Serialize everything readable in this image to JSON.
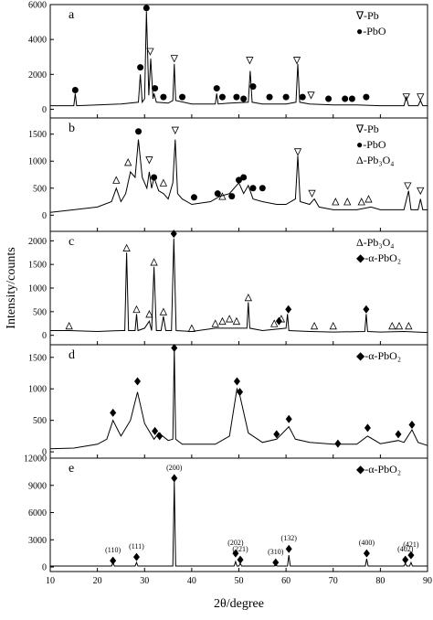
{
  "chart_data": [
    {
      "type": "line",
      "label": "a",
      "xlim": [
        10,
        90
      ],
      "xticks": [
        10,
        20,
        30,
        40,
        50,
        60,
        70,
        80,
        90
      ],
      "ylim": [
        -500,
        6000
      ],
      "yticks": [
        0,
        2000,
        4000,
        6000
      ],
      "x": [
        10,
        15,
        15.3,
        15.6,
        20,
        25,
        28.7,
        29.1,
        29.5,
        30,
        30.4,
        30.9,
        31.3,
        31.8,
        32,
        32.5,
        35,
        36,
        36.3,
        36.6,
        40,
        45,
        45.3,
        45.6,
        48,
        52,
        52.4,
        52.8,
        55,
        60,
        62.1,
        62.5,
        62.9,
        65,
        70,
        75,
        80,
        85,
        85.5,
        86,
        88,
        88.5,
        89,
        90
      ],
      "values": [
        200,
        200,
        900,
        200,
        250,
        300,
        400,
        2000,
        400,
        600,
        5600,
        800,
        2900,
        600,
        900,
        400,
        350,
        500,
        2600,
        500,
        300,
        300,
        900,
        300,
        350,
        400,
        2200,
        400,
        300,
        300,
        400,
        2600,
        400,
        300,
        250,
        250,
        200,
        200,
        700,
        200,
        200,
        500,
        200,
        200
      ],
      "markers": [
        {
          "symbol": "triangle-down",
          "x": [
            31.2,
            36.3,
            52.3,
            62.3,
            65.3,
            85.5,
            88.5
          ],
          "y": [
            3300,
            2900,
            2800,
            2800,
            800,
            700,
            700
          ]
        },
        {
          "symbol": "circle",
          "x": [
            15.3,
            29.1,
            30.4,
            32.2,
            34,
            38,
            45.3,
            46.5,
            49.5,
            51,
            53,
            56.5,
            60,
            63.5,
            69,
            72.5,
            74,
            77
          ],
          "y": [
            1100,
            2400,
            5800,
            1200,
            700,
            700,
            1200,
            700,
            700,
            600,
            1300,
            700,
            700,
            700,
            600,
            600,
            600,
            700
          ]
        }
      ],
      "legend": [
        "∇-Pb",
        "●-PbO"
      ]
    },
    {
      "type": "line",
      "label": "b",
      "xlim": [
        10,
        90
      ],
      "xticks": [
        10,
        20,
        30,
        40,
        50,
        60,
        70,
        80,
        90
      ],
      "ylim": [
        -300,
        1800
      ],
      "yticks": [
        0,
        500,
        1000,
        1500
      ],
      "x": [
        10,
        15,
        20,
        23,
        24,
        25,
        26,
        27,
        28,
        28.7,
        29.5,
        30.5,
        31,
        31.5,
        32,
        33,
        34,
        35,
        36,
        36.5,
        37,
        38,
        40,
        44,
        46,
        48,
        49,
        50,
        51,
        52,
        53,
        55,
        58,
        60,
        62,
        62.5,
        63,
        65,
        66,
        67,
        70,
        75,
        78,
        80,
        85,
        86,
        86.5,
        88,
        88.5,
        89,
        90
      ],
      "values": [
        50,
        100,
        150,
        250,
        500,
        250,
        400,
        800,
        700,
        1400,
        700,
        500,
        800,
        500,
        700,
        450,
        400,
        300,
        600,
        1400,
        400,
        300,
        200,
        250,
        350,
        400,
        500,
        600,
        400,
        550,
        300,
        250,
        200,
        200,
        300,
        1100,
        250,
        200,
        300,
        150,
        100,
        100,
        150,
        100,
        100,
        450,
        100,
        100,
        300,
        100,
        100
      ],
      "markers": [
        {
          "symbol": "triangle-down",
          "x": [
            31,
            36.5,
            62.5,
            65.5,
            85.8,
            88.5
          ],
          "y": [
            1020,
            1570,
            1170,
            400,
            540,
            450
          ]
        },
        {
          "symbol": "circle",
          "x": [
            28.7,
            32,
            40.5,
            45.5,
            48.5,
            50,
            51,
            53,
            55
          ],
          "y": [
            1550,
            700,
            330,
            400,
            350,
            650,
            700,
            500,
            500
          ]
        },
        {
          "symbol": "triangle-up",
          "x": [
            24,
            26.5,
            34,
            46.5,
            70.5,
            73,
            76,
            77.5
          ],
          "y": [
            650,
            980,
            600,
            350,
            250,
            250,
            250,
            300
          ]
        }
      ],
      "legend": [
        "∇-Pb",
        "●-PbO",
        "Δ-Pb₃O₄"
      ]
    },
    {
      "type": "line",
      "label": "c",
      "ylabel": "Intensity/counts",
      "xlim": [
        10,
        90
      ],
      "xticks": [
        10,
        20,
        30,
        40,
        50,
        60,
        70,
        80,
        90
      ],
      "ylim": [
        -200,
        2200
      ],
      "yticks": [
        0,
        500,
        1000,
        1500,
        2000
      ],
      "x": [
        10,
        14,
        20,
        25,
        25.8,
        26.2,
        26.6,
        28,
        28.3,
        28.6,
        30,
        31,
        31.5,
        32,
        32.5,
        33.5,
        34,
        34.5,
        35.7,
        36.2,
        36.7,
        40,
        45,
        50,
        51.7,
        52,
        52.3,
        55,
        60,
        60.3,
        60.6,
        65,
        70,
        76.7,
        77,
        77.3,
        80,
        85,
        90
      ],
      "values": [
        100,
        100,
        80,
        100,
        100,
        1750,
        100,
        100,
        450,
        100,
        150,
        300,
        100,
        1450,
        100,
        100,
        400,
        100,
        100,
        2050,
        100,
        80,
        150,
        150,
        150,
        700,
        150,
        100,
        150,
        450,
        100,
        80,
        70,
        80,
        450,
        80,
        70,
        80,
        60
      ],
      "markers": [
        {
          "symbol": "triangle-up",
          "x": [
            14,
            26.2,
            28.3,
            31,
            32,
            34,
            40,
            45,
            46.5,
            48,
            49.5,
            52,
            57.5,
            59,
            66,
            70,
            82.5,
            84,
            86
          ],
          "y": [
            200,
            1850,
            550,
            450,
            1550,
            500,
            150,
            250,
            300,
            350,
            300,
            800,
            250,
            350,
            200,
            200,
            200,
            200,
            200
          ]
        },
        {
          "symbol": "diamond",
          "x": [
            36.2,
            58.5,
            60.5,
            77
          ],
          "y": [
            2150,
            300,
            550,
            550
          ]
        }
      ],
      "legend": [
        "Δ-Pb₃O₄",
        "◆-α-PbO₂"
      ]
    },
    {
      "type": "line",
      "label": "d",
      "xlim": [
        10,
        90
      ],
      "xticks": [
        10,
        20,
        30,
        40,
        50,
        60,
        70,
        80,
        90
      ],
      "ylim": [
        -100,
        1700
      ],
      "yticks": [
        0,
        500,
        1000,
        1500
      ],
      "x": [
        10,
        15,
        20,
        22,
        23.3,
        25,
        27,
        28.5,
        30,
        32,
        33,
        35,
        36,
        36.3,
        36.6,
        38,
        45,
        48,
        49.6,
        50.2,
        52,
        55,
        58,
        60.6,
        62,
        65,
        70,
        75,
        77.3,
        80,
        83.8,
        85,
        86.7,
        88,
        90
      ],
      "values": [
        50,
        60,
        120,
        200,
        500,
        250,
        500,
        950,
        450,
        200,
        300,
        180,
        200,
        1650,
        200,
        120,
        120,
        250,
        1000,
        900,
        300,
        150,
        200,
        400,
        200,
        150,
        120,
        120,
        250,
        130,
        180,
        150,
        350,
        150,
        100
      ],
      "markers": [
        {
          "symbol": "diamond",
          "x": [
            23.3,
            28.5,
            32.2,
            33.2,
            36.3,
            49.6,
            50.2,
            58,
            60.6,
            71,
            77.3,
            83.8,
            86.7
          ],
          "y": [
            620,
            1120,
            330,
            250,
            1650,
            1120,
            950,
            280,
            520,
            130,
            380,
            280,
            430
          ]
        }
      ],
      "legend": [
        "◆-α-PbO₂"
      ]
    },
    {
      "type": "line",
      "label": "e",
      "xlabel": "2θ/degree",
      "xlim": [
        10,
        90
      ],
      "xticks": [
        10,
        20,
        30,
        40,
        50,
        60,
        70,
        80,
        90
      ],
      "ylim": [
        -500,
        12000
      ],
      "yticks": [
        0,
        3000,
        6000,
        9000,
        12000
      ],
      "x": [
        10,
        23,
        23.3,
        23.6,
        28,
        28.3,
        28.6,
        36,
        36.3,
        36.6,
        49,
        49.3,
        49.6,
        50,
        50.3,
        50.6,
        57.5,
        57.8,
        58.1,
        60.3,
        60.6,
        60.9,
        76.8,
        77.1,
        77.4,
        85,
        85.3,
        85.6,
        86.2,
        86.5,
        86.8,
        90
      ],
      "values": [
        100,
        100,
        500,
        100,
        100,
        500,
        100,
        100,
        9500,
        100,
        100,
        600,
        100,
        100,
        400,
        100,
        100,
        300,
        100,
        100,
        1300,
        100,
        100,
        900,
        100,
        100,
        400,
        100,
        100,
        500,
        100,
        100
      ],
      "markers": [
        {
          "symbol": "diamond",
          "x": [
            23.3,
            28.3,
            36.3,
            49.3,
            50.3,
            57.8,
            60.6,
            77.1,
            85.3,
            86.5
          ],
          "y": [
            700,
            1100,
            9800,
            1500,
            800,
            500,
            2000,
            1500,
            800,
            1300
          ],
          "labels": [
            "(110)",
            "(111)",
            "(200)",
            "(202)",
            "(221)",
            "(310)",
            "(132)",
            "(400)",
            "(402)",
            "(421)"
          ]
        }
      ],
      "legend": [
        "◆-α-PbO₂"
      ]
    }
  ]
}
